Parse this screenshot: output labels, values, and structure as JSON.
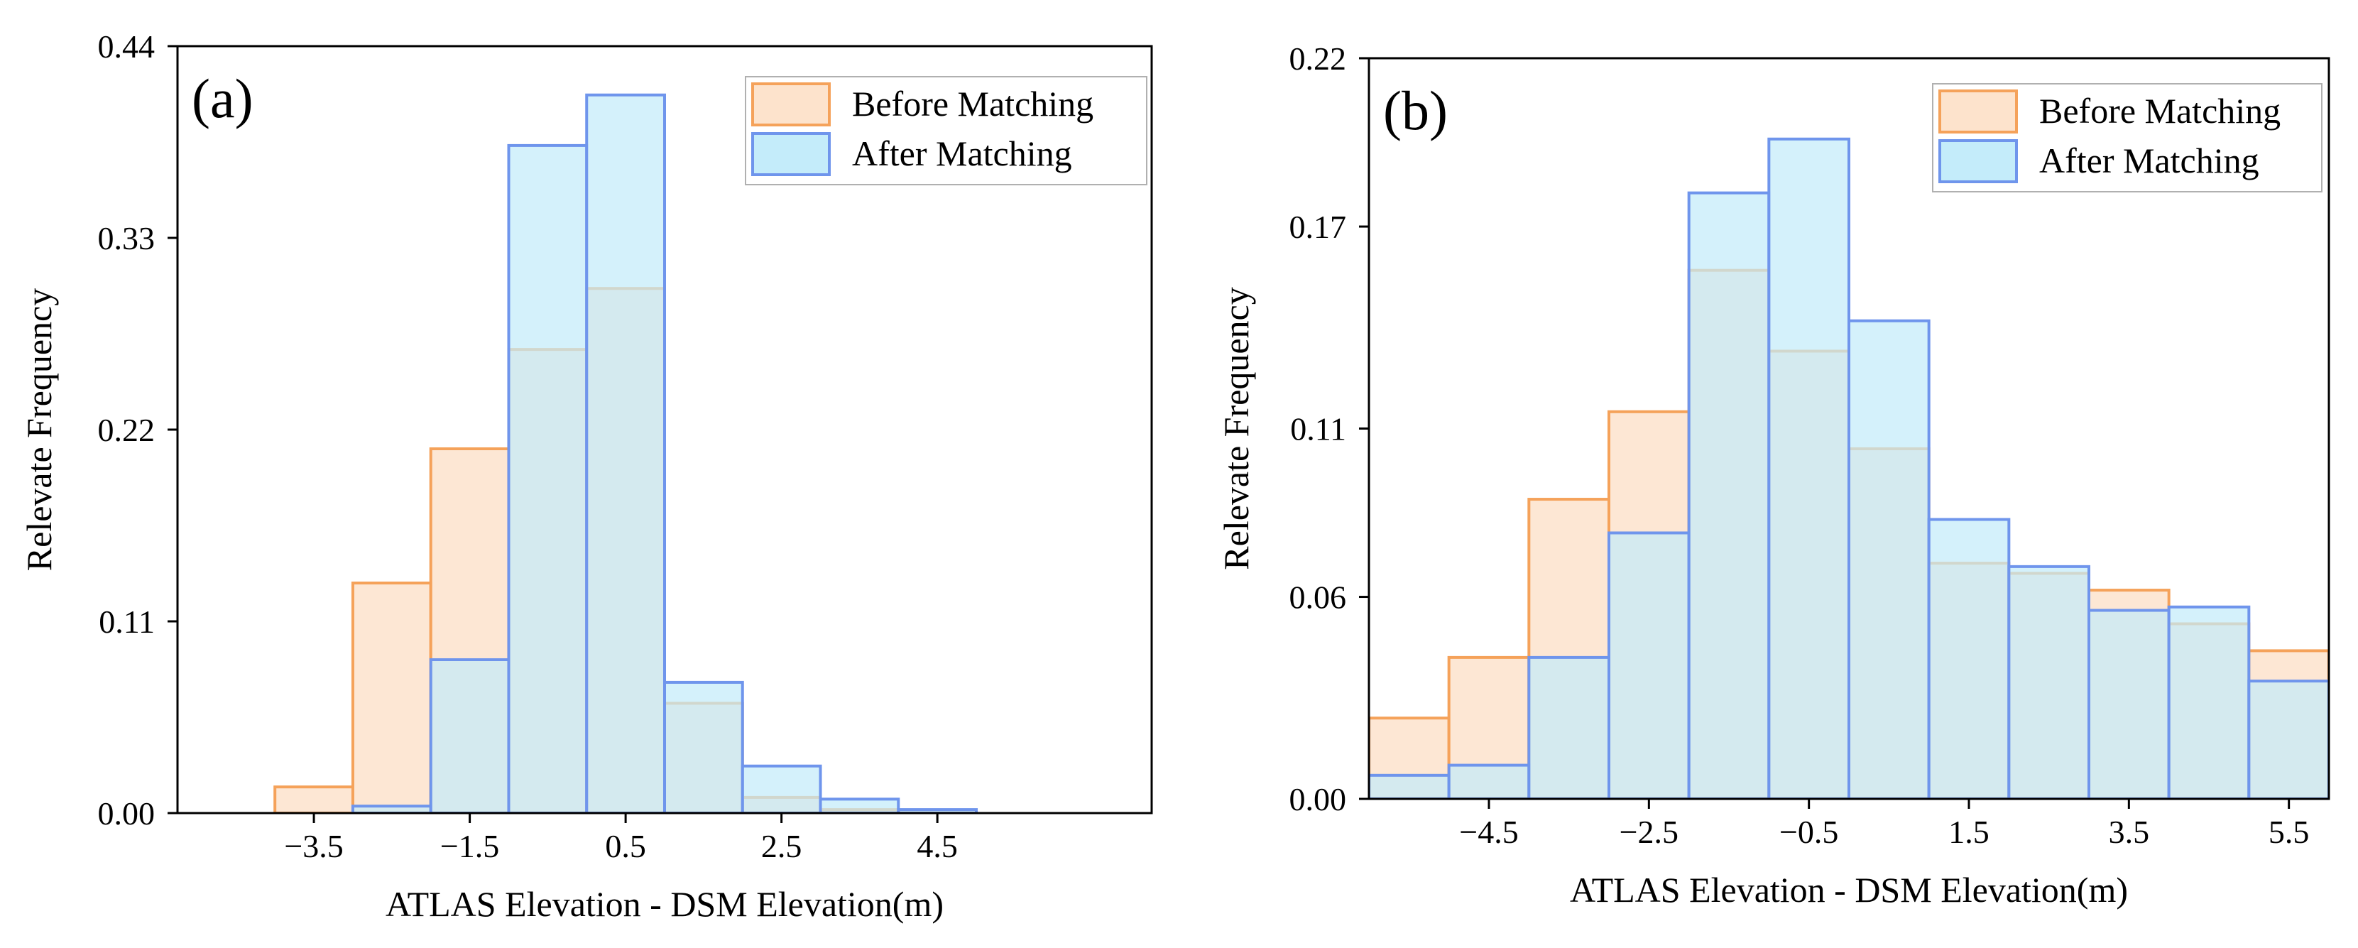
{
  "colors": {
    "before_fill": "#fde3cc",
    "before_stroke": "#f5a25a",
    "after_fill": "#c4ecfa",
    "after_stroke": "#6f95ec"
  },
  "chart_data": [
    {
      "type": "bar",
      "panel_label": "(a)",
      "xlabel": "ATLAS Elevation - DSM Elevation(m)",
      "ylabel": "Relevate Frequency",
      "xlim": [
        -5.25,
        7.25
      ],
      "ylim": [
        0,
        0.44
      ],
      "xticks": [
        -3.5,
        -1.5,
        0.5,
        2.5,
        4.5
      ],
      "xtick_labels": [
        "−3.5",
        "−1.5",
        "0.5",
        "2.5",
        "4.5"
      ],
      "yticks": [
        0,
        0.11,
        0.22,
        0.33,
        0.44
      ],
      "ytick_labels": [
        "0.00",
        "0.11",
        "0.22",
        "0.33",
        "0.44"
      ],
      "bin_edges": [
        -4,
        -3,
        -2,
        -1,
        0,
        1,
        2,
        3,
        4,
        5
      ],
      "legend_position": "top-right",
      "grid": false,
      "series": [
        {
          "name": "Before Matching",
          "values": [
            0.015,
            0.132,
            0.209,
            0.266,
            0.301,
            0.063,
            0.009,
            0.002,
            0.0
          ]
        },
        {
          "name": "After Matching",
          "values": [
            0.0,
            0.004,
            0.088,
            0.383,
            0.412,
            0.075,
            0.027,
            0.008,
            0.002
          ]
        }
      ]
    },
    {
      "type": "bar",
      "panel_label": "(b)",
      "xlabel": "ATLAS Elevation - DSM Elevation(m)",
      "ylabel": "Relevate Frequency",
      "xlim": [
        -6.0,
        6.0
      ],
      "ylim": [
        0,
        0.22
      ],
      "xticks": [
        -4.5,
        -2.5,
        -0.5,
        1.5,
        3.5,
        5.5
      ],
      "xtick_labels": [
        "−4.5",
        "−2.5",
        "−0.5",
        "1.5",
        "3.5",
        "5.5"
      ],
      "yticks": [
        0,
        0.06,
        0.11,
        0.17,
        0.22
      ],
      "ytick_labels": [
        "0.00",
        "0.06",
        "0.11",
        "0.17",
        "0.22"
      ],
      "bin_edges": [
        -6,
        -5,
        -4,
        -3,
        -2,
        -1,
        0,
        1,
        2,
        3,
        4,
        5,
        6
      ],
      "legend_position": "top-right",
      "grid": false,
      "series": [
        {
          "name": "Before Matching",
          "values": [
            0.024,
            0.042,
            0.089,
            0.115,
            0.157,
            0.133,
            0.104,
            0.07,
            0.067,
            0.062,
            0.052,
            0.044
          ]
        },
        {
          "name": "After Matching",
          "values": [
            0.007,
            0.01,
            0.042,
            0.079,
            0.18,
            0.196,
            0.142,
            0.083,
            0.069,
            0.056,
            0.057,
            0.035
          ]
        }
      ]
    }
  ]
}
